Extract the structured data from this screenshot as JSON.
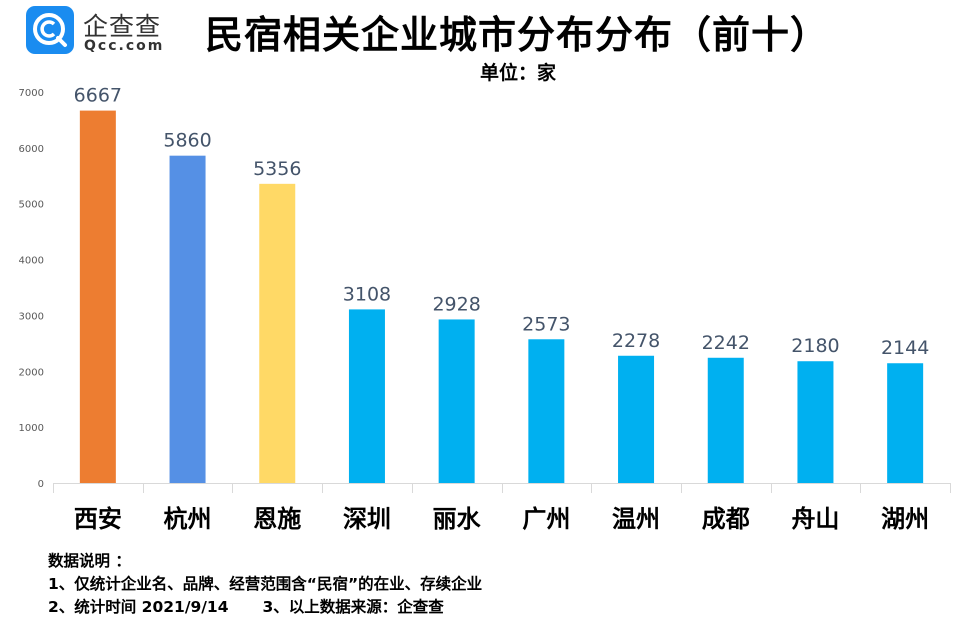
{
  "logo": {
    "name_cn": "企查查",
    "domain": "Qcc.com",
    "brand_color": "#1a8cf0"
  },
  "header": {
    "title": "民宿相关企业城市分布分布（前十）",
    "unit": "单位：家"
  },
  "chart_data": {
    "type": "bar",
    "title": "民宿相关企业城市分布分布（前十）",
    "subtitle": "单位：家",
    "xlabel": "",
    "ylabel": "",
    "categories": [
      "西安",
      "杭州",
      "恩施",
      "深圳",
      "丽水",
      "广州",
      "温州",
      "成都",
      "舟山",
      "湖州"
    ],
    "values": [
      6667,
      5860,
      5356,
      3108,
      2928,
      2573,
      2278,
      2242,
      2180,
      2144
    ],
    "data_labels": [
      "6667",
      "5860",
      "5356",
      "3108",
      "2928",
      "2573",
      "2278",
      "2242",
      "2180",
      "2144"
    ],
    "bar_colors": [
      "#ed7d31",
      "#5590e5",
      "#ffd966",
      "#00b0f0",
      "#00b0f0",
      "#00b0f0",
      "#00b0f0",
      "#00b0f0",
      "#00b0f0",
      "#00b0f0"
    ],
    "ylim": [
      0,
      7000
    ],
    "yticks": [
      0,
      1000,
      2000,
      3000,
      4000,
      5000,
      6000,
      7000
    ],
    "ytick_labels": [
      "0",
      "1000",
      "2000",
      "3000",
      "4000",
      "5000",
      "6000",
      "7000"
    ],
    "grid": false,
    "legend": "none"
  },
  "notes": {
    "heading": "数据说明 ：",
    "line1": "1、仅统计企业名、品牌、经营范围含“民宿”的在业、存续企业",
    "line2a": "2、统计时间 2021/9/14",
    "line2b": "3、以上数据来源：企查查"
  }
}
